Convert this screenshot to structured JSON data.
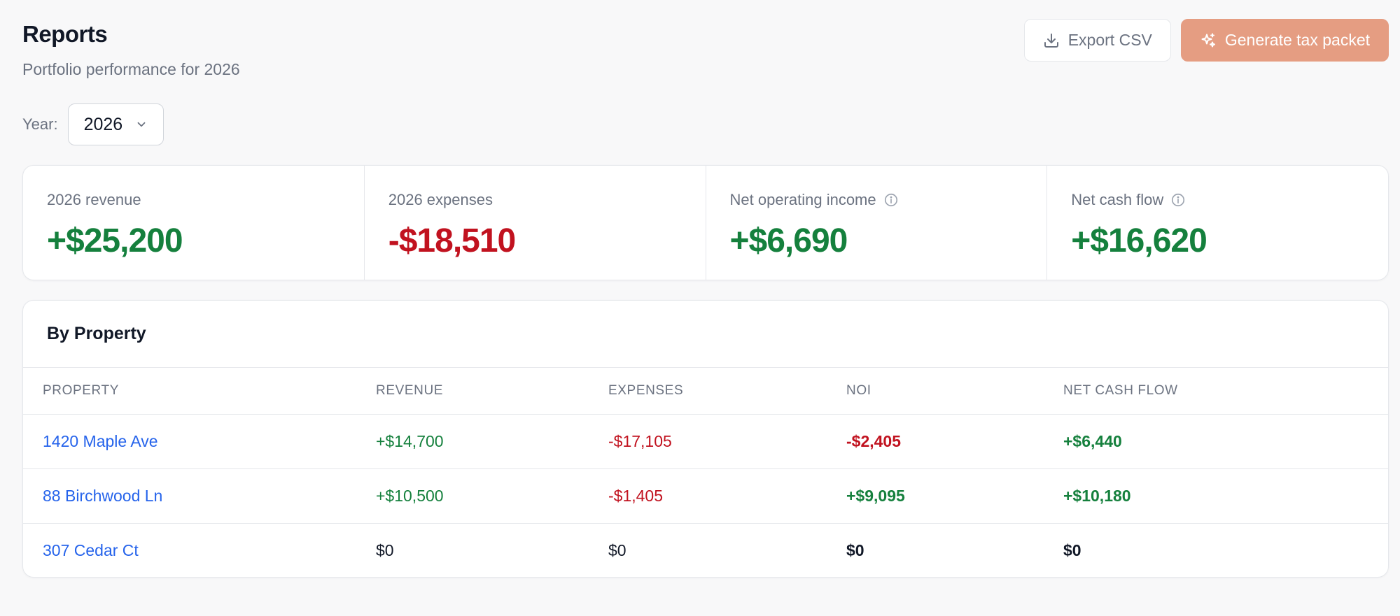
{
  "header": {
    "title": "Reports",
    "subtitle": "Portfolio performance for 2026"
  },
  "actions": {
    "export_label": "Export CSV",
    "export_icon": "download-icon",
    "generate_label": "Generate tax packet",
    "generate_icon": "sparkles-icon"
  },
  "year_filter": {
    "label": "Year:",
    "selected": "2026"
  },
  "stats": [
    {
      "label": "2026 revenue",
      "value": "+$25,200",
      "tone": "pos",
      "info": false
    },
    {
      "label": "2026 expenses",
      "value": "-$18,510",
      "tone": "neg",
      "info": false
    },
    {
      "label": "Net operating income",
      "value": "+$6,690",
      "tone": "pos",
      "info": true
    },
    {
      "label": "Net cash flow",
      "value": "+$16,620",
      "tone": "pos",
      "info": true
    }
  ],
  "by_property": {
    "title": "By Property",
    "columns": [
      "PROPERTY",
      "REVENUE",
      "EXPENSES",
      "NOI",
      "NET CASH FLOW"
    ],
    "rows": [
      {
        "property": "1420 Maple Ave",
        "revenue": "+$14,700",
        "expenses": "-$17,105",
        "noi": "-$2,405",
        "net_cash_flow": "+$6,440"
      },
      {
        "property": "88 Birchwood Ln",
        "revenue": "+$10,500",
        "expenses": "-$1,405",
        "noi": "+$9,095",
        "net_cash_flow": "+$10,180"
      },
      {
        "property": "307 Cedar Ct",
        "revenue": "$0",
        "expenses": "$0",
        "noi": "$0",
        "net_cash_flow": "$0"
      }
    ]
  },
  "colors": {
    "positive": "#15803d",
    "negative": "#c1121f",
    "link": "#2563eb",
    "primary_button": "#e59d82"
  }
}
